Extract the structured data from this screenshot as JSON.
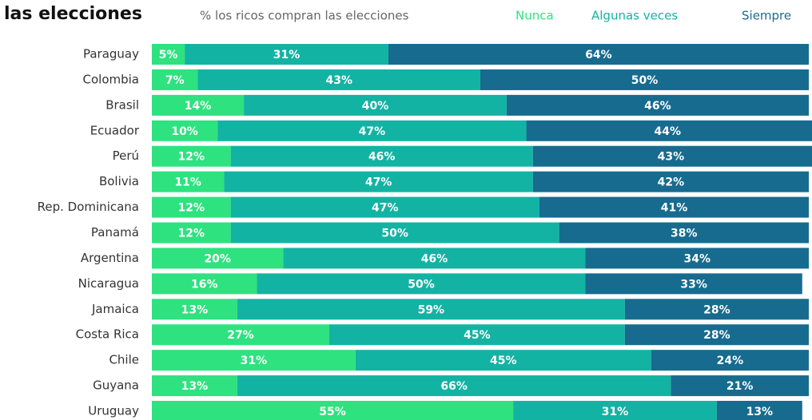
{
  "chart_data": {
    "type": "stacked-bar-horizontal",
    "title": "las elecciones",
    "subtitle": "% los ricos compran las elecciones",
    "categories": [
      "Paraguay",
      "Colombia",
      "Brasil",
      "Ecuador",
      "Perú",
      "Bolivia",
      "Rep. Dominicana",
      "Panamá",
      "Argentina",
      "Nicaragua",
      "Jamaica",
      "Costa Rica",
      "Chile",
      "Guyana",
      "Uruguay"
    ],
    "xlim": [
      0,
      100
    ],
    "series": [
      {
        "name": "Nunca",
        "color": "#2ee27f",
        "values": [
          5,
          7,
          14,
          10,
          12,
          11,
          12,
          12,
          20,
          16,
          13,
          27,
          31,
          13,
          55
        ],
        "value_labels": [
          "5%",
          "7%",
          "14%",
          "10%",
          "12%",
          "11%",
          "12%",
          "12%",
          "20%",
          "16%",
          "13%",
          "27%",
          "31%",
          "13%",
          "55%"
        ]
      },
      {
        "name": "Algunas veces",
        "color": "#13b3a4",
        "values": [
          31,
          43,
          40,
          47,
          46,
          47,
          47,
          50,
          46,
          50,
          59,
          45,
          45,
          66,
          31
        ],
        "value_labels": [
          "31%",
          "43%",
          "40%",
          "47%",
          "46%",
          "47%",
          "47%",
          "50%",
          "46%",
          "50%",
          "59%",
          "45%",
          "45%",
          "66%",
          "31%"
        ]
      },
      {
        "name": "Siempre",
        "color": "#176b8f",
        "values": [
          64,
          50,
          46,
          44,
          43,
          42,
          41,
          38,
          34,
          33,
          28,
          28,
          24,
          21,
          13
        ],
        "value_labels": [
          "64%",
          "50%",
          "46%",
          "44%",
          "43%",
          "42%",
          "41%",
          "38%",
          "34%",
          "33%",
          "28%",
          "28%",
          "24%",
          "21%",
          "13%"
        ]
      }
    ]
  }
}
